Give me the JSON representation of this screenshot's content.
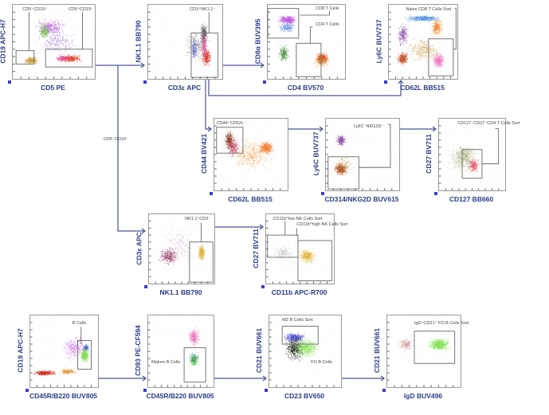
{
  "colors": {
    "axis_label": "#2b3a86",
    "connector": "#4a5590",
    "gate": "#777777"
  },
  "side_label": "CD5⁻CD19⁻",
  "plots": [
    {
      "id": "p1",
      "y_label": "CD19 APC-H7",
      "x_label": "CD5 PE",
      "gates": [
        "CD5⁻CD19⁺",
        "CD5⁺CD19⁻"
      ]
    },
    {
      "id": "p2",
      "y_label": "NK1.1 BB790",
      "x_label": "CD3ε APC",
      "gates": [
        "CD3⁺NK1.1⁻"
      ]
    },
    {
      "id": "p3",
      "y_label": "CD8α BUV395",
      "x_label": "CD4 BV570",
      "gates": [
        "CD8 T Cells",
        "CD4 T Cells"
      ]
    },
    {
      "id": "p4",
      "y_label": "Ly6C BUV737",
      "x_label": "CD62L BB515",
      "gates": [
        "Naive CD8 T Cells Sort"
      ]
    },
    {
      "id": "p5",
      "y_label": "CD44 BV421",
      "x_label": "CD62L BB515",
      "gates": [
        "CD44⁺CD62L⁻"
      ]
    },
    {
      "id": "p6",
      "y_label": "Ly6C BUV737",
      "x_label": "CD314/NKG2D BUV615",
      "gates": [
        "Ly6C⁻NKG2D⁻"
      ]
    },
    {
      "id": "p7",
      "y_label": "CD27 BV711",
      "x_label": "CD127 BB660",
      "gates": [
        "CD127⁻CD27⁻CD4 T Cells Sort"
      ]
    },
    {
      "id": "p8",
      "y_label": "CD3ε APC",
      "x_label": "NK1.1 BB790",
      "gates": [
        "NK1.1⁺CD3⁻"
      ]
    },
    {
      "id": "p9",
      "y_label": "CD27 BV711",
      "x_label": "CD11b APC-R700",
      "gates": [
        "CD11b^low NK Cells Sort",
        "CD11b^high NK Cells Sort"
      ]
    },
    {
      "id": "p10",
      "y_label": "CD19 APC-H7",
      "x_label": "CD45R/B220 BUV805",
      "gates": [
        "B Cells"
      ]
    },
    {
      "id": "p11",
      "y_label": "CD93 PE-CF594",
      "x_label": "CD45R/B220 BUV805",
      "gates": [
        "Mature B Cells"
      ]
    },
    {
      "id": "p12",
      "y_label": "CD21 BUV661",
      "x_label": "CD23 BV650",
      "gates": [
        "MZ B Cells Sort",
        "FO B Cells"
      ]
    },
    {
      "id": "p13",
      "y_label": "CD21 BUV661",
      "x_label": "IgD BUV496",
      "gates": [
        "IgD⁺CD21⁺ FO B Cells Sort"
      ]
    }
  ]
}
